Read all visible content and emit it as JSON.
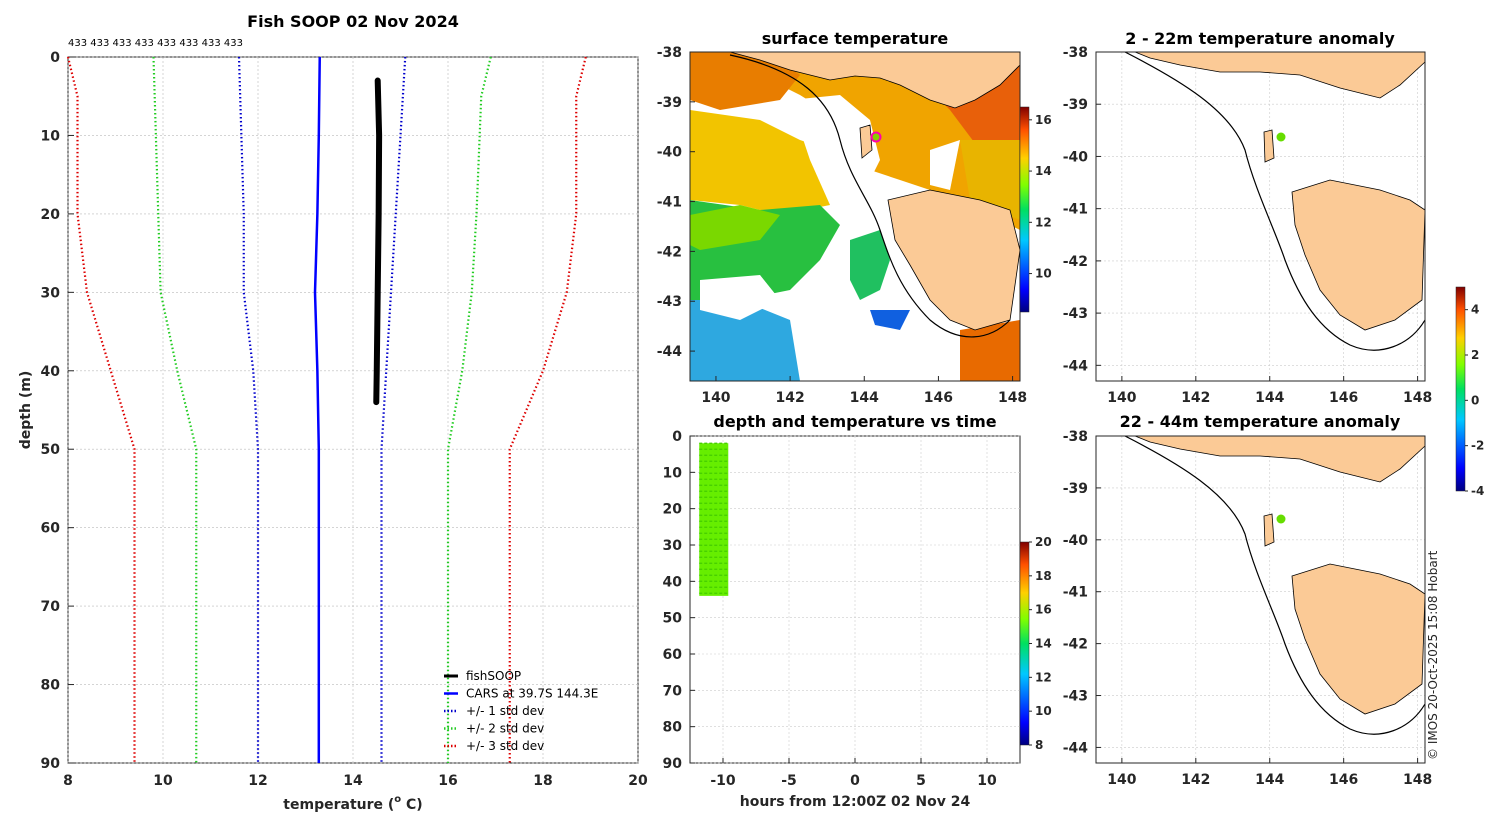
{
  "copyright": "© IMOS 20-Oct-2025 15:08 Hobart",
  "profile": {
    "title": "Fish SOOP 02 Nov 2024",
    "top_counts": "433 433 433 433 433 433 433 433",
    "xlabel": "temperature (o C)",
    "xlabel_main": "temperature (",
    "xlabel_sup": "o",
    "xlabel_end": " C)",
    "ylabel": "depth (m)",
    "legend": [
      "fishSOOP",
      "CARS at 39.7S 144.3E",
      "+/- 1 std dev",
      "+/- 2 std dev",
      "+/- 3 std dev"
    ],
    "colors": {
      "fishsoop": "#000000",
      "cars": "#0000ff",
      "std1": "#0000cc",
      "std2": "#22cc22",
      "std3": "#dd0000"
    }
  },
  "surface": {
    "title": "surface temperature"
  },
  "time_plot": {
    "title": "depth and temperature vs time",
    "xlabel": "hours from 12:00Z 02 Nov 24"
  },
  "anom1": {
    "title": "2 - 22m temperature anomaly"
  },
  "anom2": {
    "title": "22 - 44m temperature anomaly"
  },
  "chart_data": [
    {
      "type": "line",
      "title": "Fish SOOP 02 Nov 2024",
      "xlabel": "temperature (o C)",
      "ylabel": "depth (m)",
      "xlim": [
        8,
        20
      ],
      "ylim": [
        90,
        0
      ],
      "xticks": [
        8,
        10,
        12,
        14,
        16,
        18,
        20
      ],
      "yticks": [
        0,
        10,
        20,
        30,
        40,
        50,
        60,
        70,
        80,
        90
      ],
      "series": [
        {
          "name": "fishSOOP",
          "style": "solid-thick",
          "color": "#000000",
          "points": [
            [
              14.52,
              3
            ],
            [
              14.55,
              10
            ],
            [
              14.54,
              20
            ],
            [
              14.52,
              30
            ],
            [
              14.5,
              40
            ],
            [
              14.49,
              44
            ]
          ]
        },
        {
          "name": "CARS at 39.7S 144.3E",
          "style": "solid",
          "color": "#0000ff",
          "points": [
            [
              13.3,
              0
            ],
            [
              13.28,
              10
            ],
            [
              13.25,
              20
            ],
            [
              13.2,
              30
            ],
            [
              13.25,
              40
            ],
            [
              13.28,
              50
            ],
            [
              13.28,
              90
            ]
          ]
        },
        {
          "name": "+/- 1 std dev",
          "style": "dotted",
          "color": "#0000cc",
          "points": [
            [
              11.6,
              0
            ],
            [
              11.65,
              10
            ],
            [
              11.7,
              20
            ],
            [
              11.7,
              30
            ],
            [
              11.9,
              40
            ],
            [
              12.0,
              50
            ],
            [
              12.0,
              90
            ]
          ]
        },
        {
          "name": "+/- 1 std dev upper",
          "style": "dotted",
          "color": "#0000cc",
          "points": [
            [
              15.1,
              0
            ],
            [
              15.0,
              10
            ],
            [
              14.9,
              20
            ],
            [
              14.8,
              30
            ],
            [
              14.7,
              40
            ],
            [
              14.6,
              50
            ],
            [
              14.6,
              90
            ]
          ]
        },
        {
          "name": "+/- 2 std dev",
          "style": "dotted",
          "color": "#22cc22",
          "points": [
            [
              9.8,
              0
            ],
            [
              9.85,
              10
            ],
            [
              9.9,
              20
            ],
            [
              9.95,
              30
            ],
            [
              10.3,
              40
            ],
            [
              10.7,
              50
            ],
            [
              10.7,
              90
            ]
          ]
        },
        {
          "name": "+/- 2 std dev upper",
          "style": "dotted",
          "color": "#22cc22",
          "points": [
            [
              16.9,
              0
            ],
            [
              16.7,
              5
            ],
            [
              16.6,
              20
            ],
            [
              16.5,
              30
            ],
            [
              16.3,
              40
            ],
            [
              16.0,
              50
            ],
            [
              16.0,
              90
            ]
          ]
        },
        {
          "name": "+/- 3 std dev",
          "style": "dotted",
          "color": "#dd0000",
          "points": [
            [
              8.0,
              0
            ],
            [
              8.2,
              5
            ],
            [
              8.2,
              20
            ],
            [
              8.4,
              30
            ],
            [
              8.9,
              40
            ],
            [
              9.4,
              50
            ],
            [
              9.4,
              90
            ]
          ]
        },
        {
          "name": "+/- 3 std dev upper",
          "style": "dotted",
          "color": "#dd0000",
          "points": [
            [
              18.9,
              0
            ],
            [
              18.7,
              5
            ],
            [
              18.7,
              20
            ],
            [
              18.5,
              30
            ],
            [
              18.0,
              40
            ],
            [
              17.3,
              50
            ],
            [
              17.3,
              90
            ]
          ]
        }
      ]
    },
    {
      "type": "heatmap",
      "title": "surface temperature",
      "xlim": [
        139.3,
        148.2
      ],
      "ylim": [
        -44.6,
        -38
      ],
      "xticks": [
        140,
        142,
        144,
        146,
        148
      ],
      "yticks": [
        -38,
        -39,
        -40,
        -41,
        -42,
        -43,
        -44
      ],
      "colorbar": {
        "min": 8.5,
        "max": 16.5,
        "ticks": [
          10,
          12,
          14,
          16
        ]
      },
      "point": {
        "lon": 144.3,
        "lat": -39.7
      }
    },
    {
      "type": "scatter",
      "title": "depth and temperature vs time",
      "xlabel": "hours from 12:00Z 02 Nov 24",
      "xlim": [
        -12.5,
        12.5
      ],
      "ylim": [
        90,
        0
      ],
      "xticks": [
        -10,
        -5,
        0,
        5,
        10
      ],
      "yticks": [
        0,
        10,
        20,
        30,
        40,
        50,
        60,
        70,
        80,
        90
      ],
      "colorbar": {
        "min": 8,
        "max": 20,
        "ticks": [
          8,
          10,
          12,
          14,
          16,
          18,
          20
        ]
      },
      "points": {
        "hours": [
          -11.8,
          -9.6
        ],
        "depth": [
          2,
          44
        ],
        "temperature": 14.5
      }
    },
    {
      "type": "heatmap",
      "title": "2 - 22m temperature anomaly",
      "xlim": [
        139.3,
        148.2
      ],
      "ylim": [
        -44.3,
        -38
      ],
      "xticks": [
        140,
        142,
        144,
        146,
        148
      ],
      "yticks": [
        -38,
        -39,
        -40,
        -41,
        -42,
        -43,
        -44
      ],
      "point": {
        "lon": 144.3,
        "lat": -39.7,
        "anomaly": 1.2
      }
    },
    {
      "type": "heatmap",
      "title": "22 - 44m temperature anomaly",
      "xlim": [
        139.3,
        148.2
      ],
      "ylim": [
        -44.3,
        -38
      ],
      "xticks": [
        140,
        142,
        144,
        146,
        148
      ],
      "yticks": [
        -38,
        -39,
        -40,
        -41,
        -42,
        -43,
        -44
      ],
      "colorbar": {
        "min": -4,
        "max": 5,
        "ticks": [
          -4,
          -2,
          0,
          2,
          4
        ]
      },
      "point": {
        "lon": 144.3,
        "lat": -39.7,
        "anomaly": 1.2
      }
    }
  ]
}
